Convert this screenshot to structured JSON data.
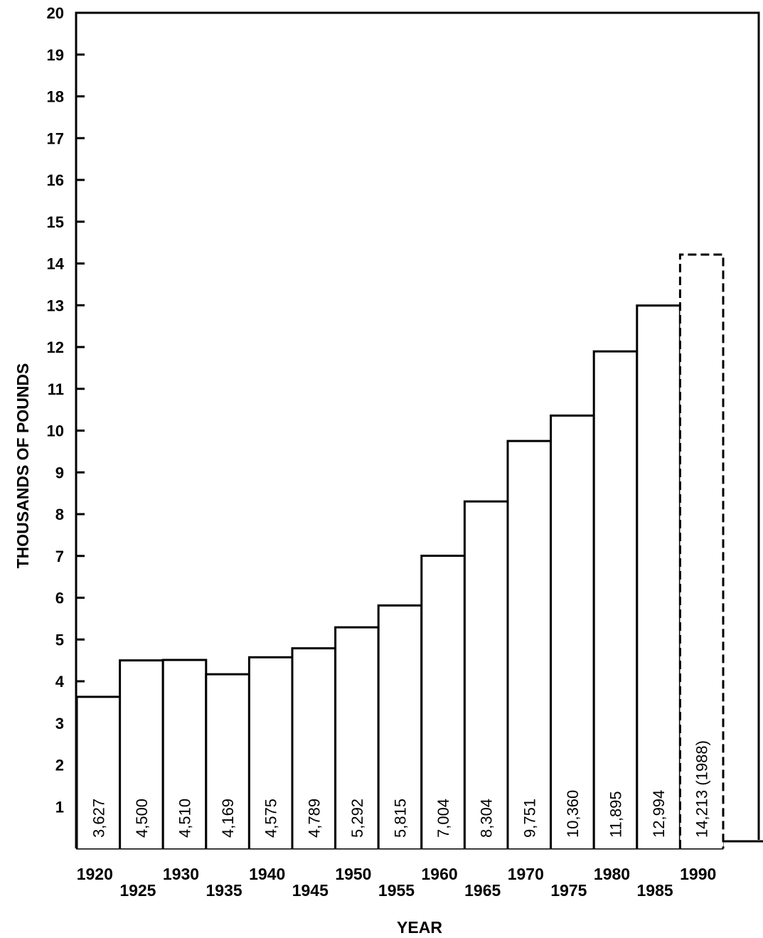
{
  "chart_data": {
    "type": "bar",
    "xlabel": "YEAR",
    "ylabel": "THOUSANDS OF POUNDS",
    "ylim": [
      0,
      20
    ],
    "y_ticks": [
      1,
      2,
      3,
      4,
      5,
      6,
      7,
      8,
      9,
      10,
      11,
      12,
      13,
      14,
      15,
      16,
      17,
      18,
      19,
      20
    ],
    "categories": [
      "1920",
      "1925",
      "1930",
      "1935",
      "1940",
      "1945",
      "1950",
      "1955",
      "1960",
      "1965",
      "1970",
      "1975",
      "1980",
      "1985",
      "1990"
    ],
    "values": [
      3.627,
      4.5,
      4.51,
      4.169,
      4.575,
      4.789,
      5.292,
      5.815,
      7.004,
      8.304,
      9.751,
      10.36,
      11.895,
      12.994,
      14.213
    ],
    "data_labels": [
      "3,627",
      "4,500",
      "4,510",
      "4,169",
      "4,575",
      "4,789",
      "5,292",
      "5,815",
      "7,004",
      "8,304",
      "9,751",
      "10,360",
      "11,895",
      "12,994",
      "14,213 (1988)"
    ],
    "dashed_bars": [
      14
    ],
    "grid": false,
    "legend": "none"
  }
}
